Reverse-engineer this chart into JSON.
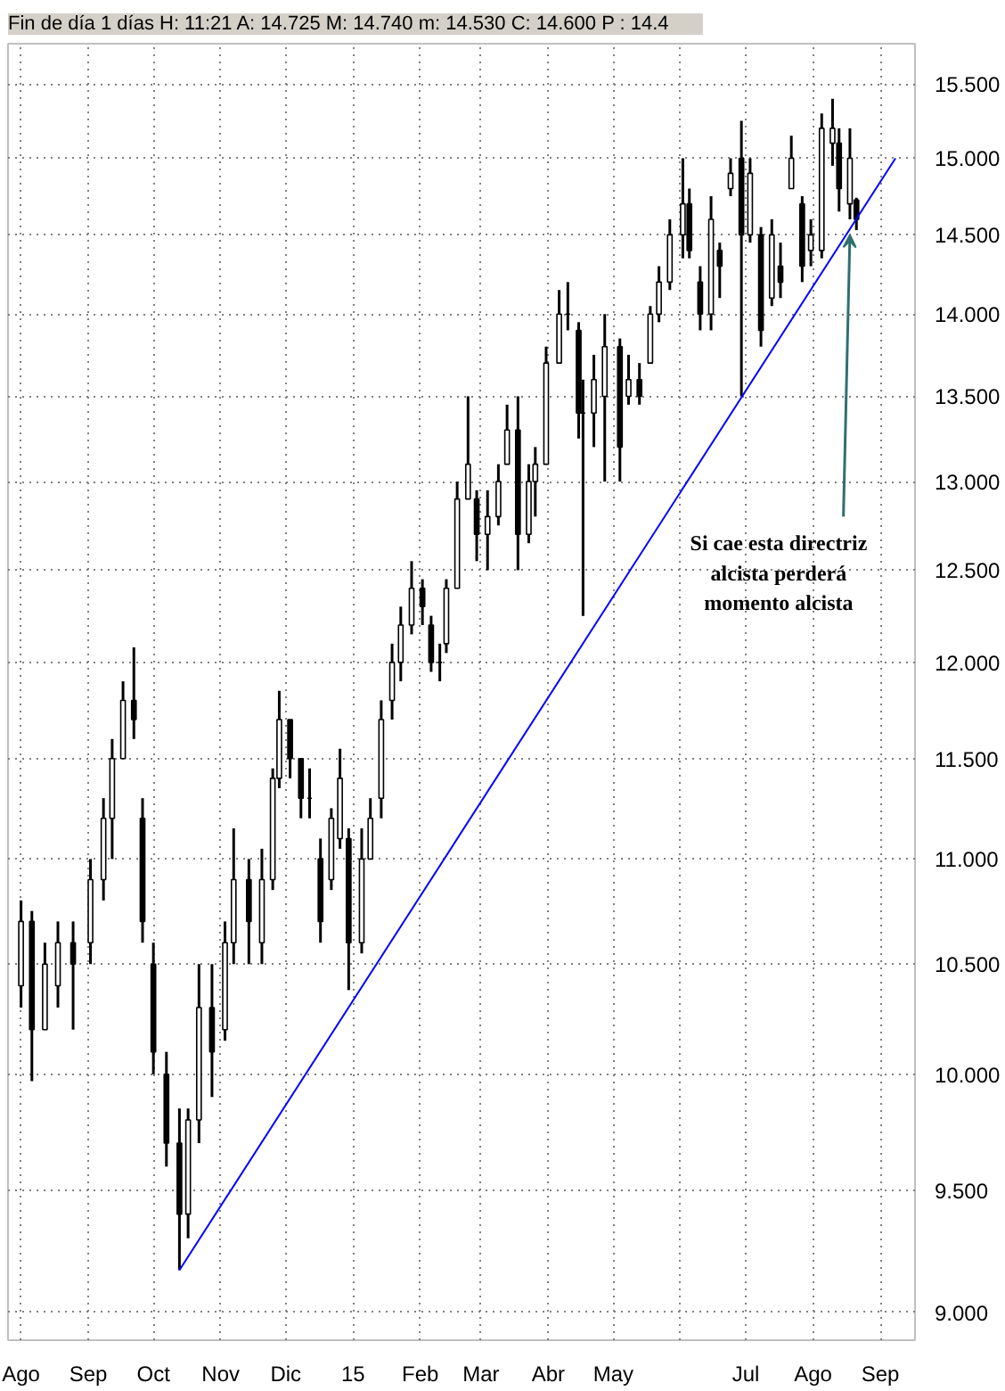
{
  "chart_data": {
    "type": "candlestick",
    "title": "Fin de día 1 días  H: 11:21  A: 14.725  M: 14.740  m: 14.530  C: 14.600  P : 14.4",
    "log": "y",
    "grid": true,
    "line_style": "solid",
    "xlim": [
      "2014-07-26",
      "2015-09-17"
    ],
    "xticks": [
      {
        "value": "2014-08-01",
        "label": "Ago"
      },
      {
        "value": "2014-09-01",
        "label": "Sep"
      },
      {
        "value": "2014-10-01",
        "label": "Oct"
      },
      {
        "value": "2014-11-01",
        "label": "Nov"
      },
      {
        "value": "2014-12-01",
        "label": "Dic"
      },
      {
        "value": "2015-01-01",
        "label": "15"
      },
      {
        "value": "2015-02-01",
        "label": "Feb"
      },
      {
        "value": "2015-03-01",
        "label": "Mar"
      },
      {
        "value": "2015-04-01",
        "label": "Abr"
      },
      {
        "value": "2015-05-01",
        "label": "May"
      },
      {
        "value": "2015-06-01",
        "label": null
      },
      {
        "value": "2015-07-01",
        "label": "Jul"
      },
      {
        "value": "2015-08-01",
        "label": "Ago"
      },
      {
        "value": "2015-09-01",
        "label": "Sep"
      }
    ],
    "ylim": [
      8.89,
      15.78
    ],
    "yticks": [
      {
        "value": 9.0,
        "label": "9.000"
      },
      {
        "value": 9.5,
        "label": "9.500"
      },
      {
        "value": 10.0,
        "label": "10.000"
      },
      {
        "value": 10.5,
        "label": "10.500"
      },
      {
        "value": 11.0,
        "label": "11.000"
      },
      {
        "value": 11.5,
        "label": "11.500"
      },
      {
        "value": 12.0,
        "label": "12.000"
      },
      {
        "value": 12.5,
        "label": "12.500"
      },
      {
        "value": 13.0,
        "label": "13.000"
      },
      {
        "value": 13.5,
        "label": "13.500"
      },
      {
        "value": 14.0,
        "label": "14.000"
      },
      {
        "value": 14.5,
        "label": "14.500"
      },
      {
        "value": 15.0,
        "label": "15.000"
      },
      {
        "value": 15.5,
        "label": "15.500"
      }
    ],
    "series": [
      {
        "type": "candlestick",
        "color": "#000000",
        "x": [
          "2014-08-01",
          "2014-08-06",
          "2014-08-12",
          "2014-08-18",
          "2014-08-25",
          "2014-09-02",
          "2014-09-08",
          "2014-09-12",
          "2014-09-17",
          "2014-09-22",
          "2014-09-26",
          "2014-10-01",
          "2014-10-07",
          "2014-10-13",
          "2014-10-17",
          "2014-10-22",
          "2014-10-28",
          "2014-11-03",
          "2014-11-07",
          "2014-11-14",
          "2014-11-20",
          "2014-11-25",
          "2014-11-28",
          "2014-12-03",
          "2014-12-08",
          "2014-12-12",
          "2014-12-17",
          "2014-12-22",
          "2014-12-26",
          "2014-12-30",
          "2015-01-05",
          "2015-01-09",
          "2015-01-14",
          "2015-01-19",
          "2015-01-23",
          "2015-01-28",
          "2015-02-02",
          "2015-02-06",
          "2015-02-10",
          "2015-02-13",
          "2015-02-18",
          "2015-02-23",
          "2015-02-27",
          "2015-03-04",
          "2015-03-09",
          "2015-03-13",
          "2015-03-18",
          "2015-03-23",
          "2015-03-26",
          "2015-03-31",
          "2015-04-06",
          "2015-04-10",
          "2015-04-15",
          "2015-04-17",
          "2015-04-22",
          "2015-04-27",
          "2015-05-04",
          "2015-05-08",
          "2015-05-13",
          "2015-05-18",
          "2015-05-22",
          "2015-05-27",
          "2015-06-02",
          "2015-06-05",
          "2015-06-10",
          "2015-06-15",
          "2015-06-19",
          "2015-06-24",
          "2015-06-29",
          "2015-07-03",
          "2015-07-08",
          "2015-07-13",
          "2015-07-17",
          "2015-07-22",
          "2015-07-27",
          "2015-07-31",
          "2015-08-05",
          "2015-08-10",
          "2015-08-13",
          "2015-08-18",
          "2015-08-21"
        ],
        "ohlc": [
          [
            10.4,
            10.8,
            10.3,
            10.7
          ],
          [
            10.7,
            10.75,
            9.97,
            10.2
          ],
          [
            10.2,
            10.6,
            10.2,
            10.5
          ],
          [
            10.4,
            10.7,
            10.3,
            10.6
          ],
          [
            10.6,
            10.7,
            10.2,
            10.5
          ],
          [
            10.6,
            11.0,
            10.5,
            10.9
          ],
          [
            10.9,
            11.3,
            10.8,
            11.2
          ],
          [
            11.2,
            11.6,
            11.0,
            11.5
          ],
          [
            11.5,
            11.9,
            11.5,
            11.8
          ],
          [
            11.8,
            12.08,
            11.6,
            11.7
          ],
          [
            11.2,
            11.3,
            10.6,
            10.7
          ],
          [
            10.5,
            10.6,
            10.0,
            10.1
          ],
          [
            10.0,
            10.1,
            9.6,
            9.7
          ],
          [
            9.7,
            9.85,
            9.17,
            9.4
          ],
          [
            9.4,
            9.85,
            9.3,
            9.8
          ],
          [
            9.8,
            10.5,
            9.7,
            10.3
          ],
          [
            10.3,
            10.5,
            9.9,
            10.1
          ],
          [
            10.2,
            10.7,
            10.15,
            10.6
          ],
          [
            10.6,
            11.15,
            10.5,
            10.9
          ],
          [
            10.9,
            11.0,
            10.5,
            10.7
          ],
          [
            10.6,
            11.05,
            10.5,
            10.9
          ],
          [
            10.9,
            11.45,
            10.85,
            11.4
          ],
          [
            11.4,
            11.85,
            11.35,
            11.7
          ],
          [
            11.7,
            11.7,
            11.4,
            11.5
          ],
          [
            11.5,
            11.5,
            11.2,
            11.3
          ],
          [
            11.3,
            11.45,
            11.2,
            11.3
          ],
          [
            11.0,
            11.1,
            10.6,
            10.7
          ],
          [
            10.9,
            11.25,
            10.85,
            11.2
          ],
          [
            11.1,
            11.55,
            11.05,
            11.4
          ],
          [
            11.1,
            11.15,
            10.38,
            10.6
          ],
          [
            10.6,
            11.15,
            10.55,
            11.0
          ],
          [
            11.0,
            11.3,
            11.0,
            11.2
          ],
          [
            11.3,
            11.8,
            11.2,
            11.7
          ],
          [
            11.8,
            12.1,
            11.7,
            12.0
          ],
          [
            12.0,
            12.3,
            11.9,
            12.2
          ],
          [
            12.2,
            12.55,
            12.15,
            12.4
          ],
          [
            12.4,
            12.45,
            12.2,
            12.3
          ],
          [
            12.2,
            12.25,
            11.95,
            12.0
          ],
          [
            12.0,
            12.1,
            11.9,
            12.0
          ],
          [
            12.1,
            12.45,
            12.05,
            12.4
          ],
          [
            12.4,
            13.0,
            12.4,
            12.9
          ],
          [
            12.9,
            13.5,
            12.9,
            13.1
          ],
          [
            12.9,
            12.95,
            12.55,
            12.7
          ],
          [
            12.7,
            12.95,
            12.5,
            12.8
          ],
          [
            12.8,
            13.1,
            12.75,
            13.0
          ],
          [
            13.1,
            13.45,
            13.1,
            13.3
          ],
          [
            13.3,
            13.5,
            12.5,
            12.7
          ],
          [
            12.7,
            13.1,
            12.65,
            13.0
          ],
          [
            13.0,
            13.2,
            12.8,
            13.1
          ],
          [
            13.1,
            13.8,
            13.1,
            13.7
          ],
          [
            13.7,
            14.15,
            13.7,
            14.0
          ],
          [
            14.0,
            14.2,
            13.9,
            14.0
          ],
          [
            13.9,
            13.95,
            13.25,
            13.4
          ],
          [
            13.4,
            13.6,
            12.25,
            13.4
          ],
          [
            13.4,
            13.75,
            13.2,
            13.6
          ],
          [
            13.5,
            14.0,
            13.0,
            13.8
          ],
          [
            13.8,
            13.85,
            13.0,
            13.2
          ],
          [
            13.5,
            13.75,
            13.45,
            13.6
          ],
          [
            13.6,
            13.7,
            13.45,
            13.5
          ],
          [
            13.7,
            14.05,
            13.7,
            14.0
          ],
          [
            14.0,
            14.3,
            13.95,
            14.2
          ],
          [
            14.2,
            14.6,
            14.15,
            14.5
          ],
          [
            14.5,
            15.0,
            14.35,
            14.7
          ],
          [
            14.7,
            14.8,
            14.35,
            14.4
          ],
          [
            14.2,
            14.3,
            13.9,
            14.0
          ],
          [
            14.0,
            14.75,
            13.9,
            14.6
          ],
          [
            14.4,
            14.45,
            14.1,
            14.3
          ],
          [
            14.8,
            15.0,
            14.75,
            14.9
          ],
          [
            15.0,
            15.25,
            13.5,
            14.5
          ],
          [
            14.5,
            15.0,
            14.45,
            14.9
          ],
          [
            14.5,
            14.55,
            13.8,
            13.9
          ],
          [
            14.1,
            14.6,
            14.05,
            14.5
          ],
          [
            14.3,
            14.45,
            14.1,
            14.2
          ],
          [
            14.8,
            15.15,
            14.8,
            15.0
          ],
          [
            14.7,
            14.75,
            14.2,
            14.3
          ],
          [
            14.4,
            14.6,
            14.3,
            14.5
          ],
          [
            14.4,
            15.3,
            14.35,
            15.2
          ],
          [
            15.1,
            15.4,
            14.95,
            15.2
          ],
          [
            15.1,
            15.2,
            14.65,
            14.8
          ],
          [
            14.7,
            15.2,
            14.6,
            15.0
          ],
          [
            14.725,
            14.74,
            14.53,
            14.6
          ]
        ]
      },
      {
        "type": "line",
        "color": "#0000ff",
        "x": [
          "2014-10-13",
          "2015-09-08"
        ],
        "values": [
          9.17,
          15.0
        ]
      }
    ],
    "annotations": [
      {
        "text": "Si cae esta directriz\nalcista perderá\nmomento alcista",
        "x": "2015-08-18",
        "y": 14.5
      }
    ]
  }
}
